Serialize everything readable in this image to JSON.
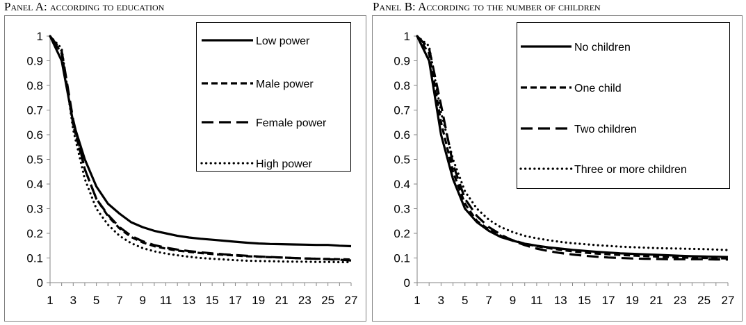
{
  "chart_data": [
    {
      "type": "line",
      "title": "Panel A: according to education",
      "xlabel": "",
      "ylabel": "",
      "ylim": [
        0,
        1
      ],
      "xlim": [
        1,
        27
      ],
      "x_ticks": [
        "1",
        "3",
        "5",
        "7",
        "9",
        "11",
        "13",
        "15",
        "17",
        "19",
        "21",
        "23",
        "25",
        "27"
      ],
      "y_ticks": [
        "0",
        "0.1",
        "0.2",
        "0.3",
        "0.4",
        "0.5",
        "0.6",
        "0.7",
        "0.8",
        "0.9",
        "1"
      ],
      "legend_position": "top-right",
      "grid": false,
      "series": [
        {
          "name": "Low power",
          "style": "solid",
          "x": [
            1,
            2,
            3,
            4,
            5,
            6,
            7,
            8,
            9,
            10,
            11,
            12,
            13,
            14,
            15,
            16,
            17,
            18,
            19,
            20,
            21,
            22,
            23,
            24,
            25,
            26,
            27
          ],
          "values": [
            1.0,
            0.9,
            0.65,
            0.5,
            0.39,
            0.32,
            0.28,
            0.245,
            0.225,
            0.21,
            0.2,
            0.19,
            0.183,
            0.178,
            0.174,
            0.17,
            0.166,
            0.162,
            0.159,
            0.157,
            0.156,
            0.155,
            0.154,
            0.153,
            0.153,
            0.15,
            0.148
          ]
        },
        {
          "name": "Male power",
          "style": "short-dash",
          "x": [
            1,
            2,
            3,
            4,
            5,
            6,
            7,
            8,
            9,
            10,
            11,
            12,
            13,
            14,
            15,
            16,
            17,
            18,
            19,
            20,
            21,
            22,
            23,
            24,
            25,
            26,
            27
          ],
          "values": [
            1.0,
            0.93,
            0.64,
            0.46,
            0.34,
            0.27,
            0.22,
            0.185,
            0.163,
            0.148,
            0.138,
            0.13,
            0.125,
            0.12,
            0.116,
            0.113,
            0.11,
            0.107,
            0.105,
            0.103,
            0.102,
            0.1,
            0.098,
            0.097,
            0.096,
            0.095,
            0.094
          ]
        },
        {
          "name": "Female power",
          "style": "long-dash",
          "x": [
            1,
            2,
            3,
            4,
            5,
            6,
            7,
            8,
            9,
            10,
            11,
            12,
            13,
            14,
            15,
            16,
            17,
            18,
            19,
            20,
            21,
            22,
            23,
            24,
            25,
            26,
            27
          ],
          "values": [
            1.0,
            0.94,
            0.66,
            0.46,
            0.34,
            0.275,
            0.225,
            0.19,
            0.168,
            0.152,
            0.142,
            0.134,
            0.128,
            0.123,
            0.119,
            0.115,
            0.112,
            0.109,
            0.106,
            0.104,
            0.102,
            0.1,
            0.098,
            0.097,
            0.095,
            0.093,
            0.09
          ]
        },
        {
          "name": "High power",
          "style": "dotted",
          "x": [
            1,
            2,
            3,
            4,
            5,
            6,
            7,
            8,
            9,
            10,
            11,
            12,
            13,
            14,
            15,
            16,
            17,
            18,
            19,
            20,
            21,
            22,
            23,
            24,
            25,
            26,
            27
          ],
          "values": [
            1.0,
            0.95,
            0.62,
            0.42,
            0.3,
            0.235,
            0.19,
            0.16,
            0.14,
            0.127,
            0.118,
            0.111,
            0.105,
            0.1,
            0.097,
            0.094,
            0.091,
            0.089,
            0.088,
            0.087,
            0.086,
            0.085,
            0.085,
            0.084,
            0.084,
            0.083,
            0.083
          ]
        }
      ]
    },
    {
      "type": "line",
      "title": "Panel B: According to the number of children",
      "xlabel": "",
      "ylabel": "",
      "ylim": [
        0,
        1
      ],
      "xlim": [
        1,
        27
      ],
      "x_ticks": [
        "1",
        "3",
        "5",
        "7",
        "9",
        "11",
        "13",
        "15",
        "17",
        "19",
        "21",
        "23",
        "25",
        "27"
      ],
      "y_ticks": [
        "0",
        "0.1",
        "0.2",
        "0.3",
        "0.4",
        "0.5",
        "0.6",
        "0.7",
        "0.8",
        "0.9",
        "1"
      ],
      "legend_position": "top-right",
      "grid": false,
      "series": [
        {
          "name": "No children",
          "style": "solid",
          "x": [
            1,
            2,
            3,
            4,
            5,
            6,
            7,
            8,
            9,
            10,
            11,
            12,
            13,
            14,
            15,
            16,
            17,
            18,
            19,
            20,
            21,
            22,
            23,
            24,
            25,
            26,
            27
          ],
          "values": [
            1.0,
            0.9,
            0.6,
            0.42,
            0.3,
            0.245,
            0.21,
            0.185,
            0.17,
            0.158,
            0.15,
            0.143,
            0.138,
            0.133,
            0.129,
            0.125,
            0.122,
            0.119,
            0.117,
            0.115,
            0.113,
            0.111,
            0.109,
            0.107,
            0.106,
            0.105,
            0.104
          ]
        },
        {
          "name": "One child",
          "style": "short-dash",
          "x": [
            1,
            2,
            3,
            4,
            5,
            6,
            7,
            8,
            9,
            10,
            11,
            12,
            13,
            14,
            15,
            16,
            17,
            18,
            19,
            20,
            21,
            22,
            23,
            24,
            25,
            26,
            27
          ],
          "values": [
            1.0,
            0.93,
            0.65,
            0.45,
            0.32,
            0.25,
            0.215,
            0.19,
            0.172,
            0.158,
            0.148,
            0.14,
            0.133,
            0.127,
            0.122,
            0.118,
            0.115,
            0.112,
            0.11,
            0.108,
            0.106,
            0.104,
            0.102,
            0.101,
            0.1,
            0.099,
            0.098
          ]
        },
        {
          "name": "Two children",
          "style": "long-dash",
          "x": [
            1,
            2,
            3,
            4,
            5,
            6,
            7,
            8,
            9,
            10,
            11,
            12,
            13,
            14,
            15,
            16,
            17,
            18,
            19,
            20,
            21,
            22,
            23,
            24,
            25,
            26,
            27
          ],
          "values": [
            1.0,
            0.95,
            0.72,
            0.48,
            0.34,
            0.27,
            0.225,
            0.195,
            0.17,
            0.152,
            0.138,
            0.128,
            0.12,
            0.114,
            0.109,
            0.105,
            0.102,
            0.1,
            0.098,
            0.097,
            0.096,
            0.095,
            0.095,
            0.095,
            0.095,
            0.094,
            0.094
          ]
        },
        {
          "name": "Three or more children",
          "style": "dotted",
          "x": [
            1,
            2,
            3,
            4,
            5,
            6,
            7,
            8,
            9,
            10,
            11,
            12,
            13,
            14,
            15,
            16,
            17,
            18,
            19,
            20,
            21,
            22,
            23,
            24,
            25,
            26,
            27
          ],
          "values": [
            1.0,
            0.96,
            0.69,
            0.5,
            0.37,
            0.3,
            0.255,
            0.225,
            0.205,
            0.19,
            0.18,
            0.172,
            0.165,
            0.16,
            0.156,
            0.152,
            0.149,
            0.146,
            0.144,
            0.142,
            0.14,
            0.139,
            0.138,
            0.137,
            0.136,
            0.134,
            0.132
          ]
        }
      ]
    }
  ]
}
